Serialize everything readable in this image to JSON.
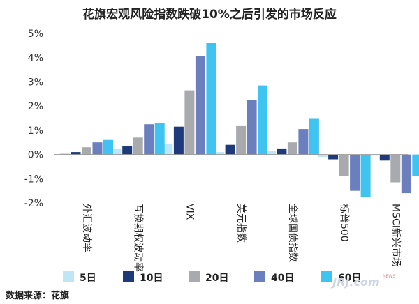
{
  "chart_data": {
    "type": "bar",
    "title": "花旗宏观风险指数跌破10%之后引发的市场反应",
    "categories": [
      "外汇波动率",
      "互换期权波动率",
      "VIX",
      "美元指数",
      "全球国债指数",
      "标普500",
      "MSCI新兴市场"
    ],
    "ylim": [
      -2,
      5
    ],
    "yticks": [
      5,
      4,
      3,
      2,
      1,
      0,
      -1,
      -2
    ],
    "ytick_labels": [
      "5%",
      "4%",
      "3%",
      "2%",
      "1%",
      "0%",
      "-1%",
      "-2%"
    ],
    "grid": false,
    "legend_position": "bottom",
    "series": [
      {
        "name": "5日",
        "color": "#bfe6f7",
        "values": [
          0.05,
          0.25,
          0.45,
          0.1,
          0.15,
          -0.1,
          -0.05
        ]
      },
      {
        "name": "10日",
        "color": "#1f3a7a",
        "values": [
          0.1,
          0.35,
          1.15,
          0.4,
          0.25,
          -0.2,
          -0.25
        ]
      },
      {
        "name": "20日",
        "color": "#a9aaae",
        "values": [
          0.3,
          0.7,
          2.65,
          1.2,
          0.5,
          -0.9,
          -1.15
        ]
      },
      {
        "name": "40日",
        "color": "#6b7fbf",
        "values": [
          0.5,
          1.25,
          4.05,
          2.25,
          1.05,
          -1.5,
          -1.6
        ]
      },
      {
        "name": "60日",
        "color": "#3fc4f2",
        "values": [
          0.6,
          1.3,
          4.6,
          2.85,
          1.5,
          -1.75,
          -0.9
        ]
      }
    ]
  },
  "footer": {
    "source": "数据来源：花旗"
  },
  "watermark": {
    "text": "JRJ.com",
    "small": "NEWS"
  }
}
